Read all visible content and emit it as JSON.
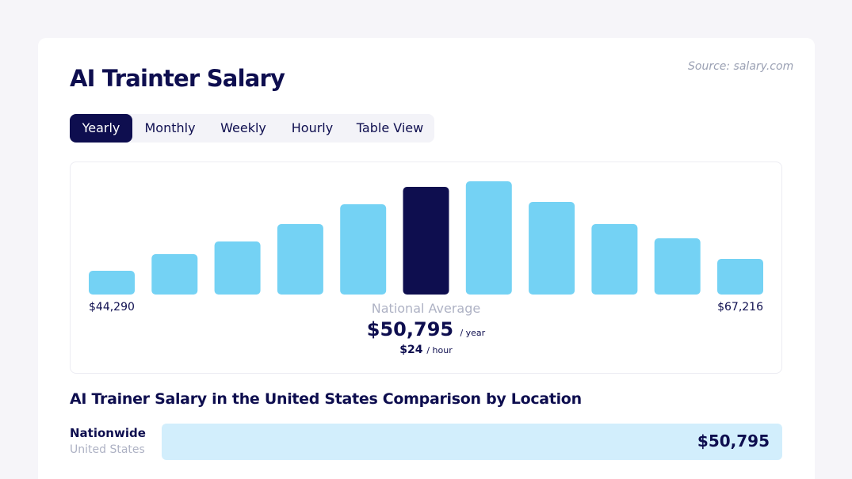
{
  "source": "Source: salary.com",
  "title": "AI Trainter Salary",
  "tabs": [
    {
      "label": "Yearly",
      "active": true
    },
    {
      "label": "Monthly",
      "active": false
    },
    {
      "label": "Weekly",
      "active": false
    },
    {
      "label": "Hourly",
      "active": false
    },
    {
      "label": "Table View",
      "active": false
    }
  ],
  "chart_data": {
    "type": "bar",
    "values": [
      30,
      51,
      67,
      89,
      114,
      136,
      143,
      117,
      89,
      71,
      45
    ],
    "highlight_index": 5,
    "colors": {
      "bar": "#74d2f4",
      "highlight": "#0e0e4f"
    },
    "min_label": "$44,290",
    "max_label": "$67,216",
    "national_average_label": "National Average",
    "national_average_value": "$50,795",
    "per_year": "/ year",
    "hourly_value": "$24",
    "per_hour": "/ hour"
  },
  "comparison": {
    "title": "AI Trainer Salary in the United States Comparison by Location",
    "location": "Nationwide",
    "sublocation": "United States",
    "value": "$50,795"
  }
}
